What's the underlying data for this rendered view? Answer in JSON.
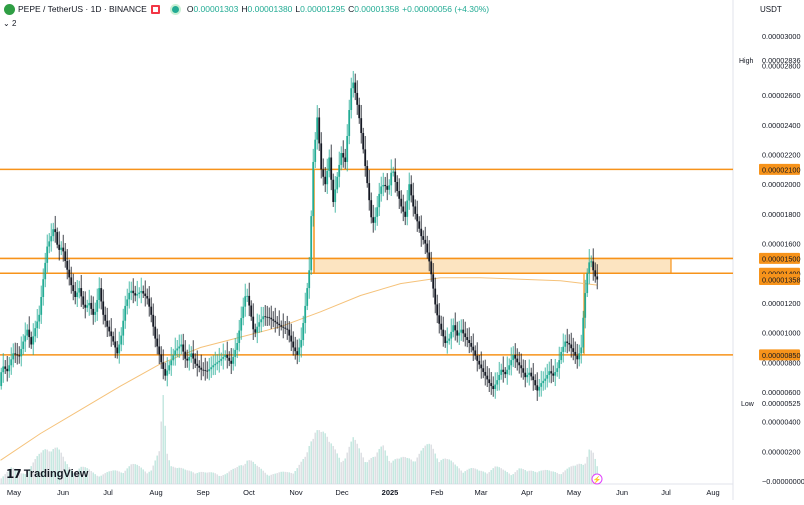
{
  "header": {
    "symbol": "PEPE / TetherUS · 1D · BINANCE",
    "open_label": "O",
    "open": "0.00001303",
    "high_label": "H",
    "high": "0.00001380",
    "low_label": "L",
    "low": "0.00001295",
    "close_label": "C",
    "close": "0.00001358",
    "change": "+0.00000056 (+4.30%)"
  },
  "indicator_count": "2",
  "currency": "USDT",
  "logo_text": "TradingView",
  "colors": {
    "up": "#22ab94",
    "down": "#131722",
    "level": "#f7931a",
    "zone_fill": "#fbd9a6",
    "ma": "#f5c27a"
  },
  "chart_data": {
    "type": "candlestick",
    "x_labels": [
      "May",
      "Jun",
      "Jul",
      "Aug",
      "Sep",
      "Oct",
      "Nov",
      "Dec",
      "2025",
      "Feb",
      "Mar",
      "Apr",
      "May",
      "Jun",
      "Jul",
      "Aug"
    ],
    "y_ticks": [
      "0.00003000",
      "0.00002800",
      "0.00002600",
      "0.00002400",
      "0.00002200",
      "0.00002000",
      "0.00001800",
      "0.00001600",
      "0.00001200",
      "0.00001000",
      "0.00000800",
      "0.00000600",
      "0.00000400",
      "0.00000200",
      "−0.00000000"
    ],
    "ylim": [
      -2e-07,
      3.12e-05
    ],
    "high_label": "High",
    "high_value": "0.00002836",
    "low_label": "Low",
    "low_value": "0.00000525",
    "levels": [
      {
        "value": 2.1e-05,
        "label": "0.00002100"
      },
      {
        "value": 1.5e-05,
        "label": "0.00001500"
      },
      {
        "value": 1.4e-05,
        "label": "0.00001400"
      },
      {
        "value": 8.5e-06,
        "label": "0.00000850"
      }
    ],
    "current_price": {
      "value": 1.358e-05,
      "label": "0.00001358"
    },
    "zone": {
      "from": 1.4e-05,
      "to": 1.5e-05
    },
    "price_path": [
      [
        0,
        6.4e-06
      ],
      [
        3,
        7.8e-06
      ],
      [
        8,
        7.4e-06
      ],
      [
        14,
        8.6e-06
      ],
      [
        20,
        8.4e-06
      ],
      [
        24,
        9.4e-06
      ],
      [
        28,
        1.02e-05
      ],
      [
        32,
        9.2e-06
      ],
      [
        36,
        1.03e-05
      ],
      [
        40,
        1.12e-05
      ],
      [
        44,
        1.36e-05
      ],
      [
        48,
        1.58e-05
      ],
      [
        52,
        1.65e-05
      ],
      [
        55,
        1.72e-05
      ],
      [
        59,
        1.55e-05
      ],
      [
        63,
        1.58e-05
      ],
      [
        67,
        1.45e-05
      ],
      [
        72,
        1.32e-05
      ],
      [
        76,
        1.24e-05
      ],
      [
        80,
        1.3e-05
      ],
      [
        85,
        1.16e-05
      ],
      [
        90,
        1.2e-05
      ],
      [
        95,
        1.1e-05
      ],
      [
        100,
        1.3e-05
      ],
      [
        104,
        1.12e-05
      ],
      [
        108,
        1.04e-05
      ],
      [
        113,
        9.6e-06
      ],
      [
        118,
        8.6e-06
      ],
      [
        122,
        9.8e-06
      ],
      [
        126,
        1.18e-05
      ],
      [
        131,
        1.29e-05
      ],
      [
        136,
        1.25e-05
      ],
      [
        142,
        1.28e-05
      ],
      [
        148,
        1.23e-05
      ],
      [
        152,
        1.12e-05
      ],
      [
        156,
        9.6e-06
      ],
      [
        162,
        8e-06
      ],
      [
        166,
        7.1e-06
      ],
      [
        170,
        7.8e-06
      ],
      [
        176,
        8.8e-06
      ],
      [
        182,
        9.2e-06
      ],
      [
        187,
        8e-06
      ],
      [
        192,
        8.6e-06
      ],
      [
        196,
        7.9e-06
      ],
      [
        202,
        7.5e-06
      ],
      [
        208,
        7.4e-06
      ],
      [
        214,
        7.8e-06
      ],
      [
        220,
        8.1e-06
      ],
      [
        226,
        8.5e-06
      ],
      [
        232,
        7.9e-06
      ],
      [
        238,
        9.3e-06
      ],
      [
        243,
        1.14e-05
      ],
      [
        247,
        1.28e-05
      ],
      [
        251,
        1.15e-05
      ],
      [
        255,
        9.8e-06
      ],
      [
        259,
        1.06e-05
      ],
      [
        264,
        1.11e-05
      ],
      [
        270,
        1.1e-05
      ],
      [
        276,
        1.07e-05
      ],
      [
        282,
        1.04e-05
      ],
      [
        288,
        1.02e-05
      ],
      [
        294,
        9e-06
      ],
      [
        298,
        8.5e-06
      ],
      [
        302,
        9.5e-06
      ],
      [
        306,
        1.18e-05
      ],
      [
        310,
        1.42e-05
      ],
      [
        314,
        2.15e-05
      ],
      [
        318,
        2.45e-05
      ],
      [
        322,
        2.1e-05
      ],
      [
        326,
        2e-05
      ],
      [
        330,
        2.18e-05
      ],
      [
        334,
        1.88e-05
      ],
      [
        338,
        2.05e-05
      ],
      [
        342,
        2.21e-05
      ],
      [
        346,
        2.15e-05
      ],
      [
        350,
        2.5e-05
      ],
      [
        353,
        2.72e-05
      ],
      [
        357,
        2.58e-05
      ],
      [
        361,
        2.4e-05
      ],
      [
        365,
        2.18e-05
      ],
      [
        369,
        1.95e-05
      ],
      [
        373,
        1.72e-05
      ],
      [
        377,
        1.8e-05
      ],
      [
        381,
        1.98e-05
      ],
      [
        385,
        2e-05
      ],
      [
        389,
        1.95e-05
      ],
      [
        393,
        2.12e-05
      ],
      [
        397,
        1.98e-05
      ],
      [
        402,
        1.85e-05
      ],
      [
        406,
        1.78e-05
      ],
      [
        410,
        2e-05
      ],
      [
        414,
        1.85e-05
      ],
      [
        418,
        1.75e-05
      ],
      [
        422,
        1.65e-05
      ],
      [
        426,
        1.6e-05
      ],
      [
        430,
        1.48e-05
      ],
      [
        433,
        1.35e-05
      ],
      [
        436,
        1.19e-05
      ],
      [
        439,
        1.08e-05
      ],
      [
        442,
        1.02e-05
      ],
      [
        446,
        9.3e-06
      ],
      [
        450,
        9.6e-06
      ],
      [
        454,
        1.05e-05
      ],
      [
        458,
        9.8e-06
      ],
      [
        462,
        1.02e-05
      ],
      [
        466,
        9.7e-06
      ],
      [
        470,
        9.3e-06
      ],
      [
        474,
        8.8e-06
      ],
      [
        478,
        8.1e-06
      ],
      [
        482,
        7.6e-06
      ],
      [
        486,
        7.1e-06
      ],
      [
        490,
        6.6e-06
      ],
      [
        494,
        6.2e-06
      ],
      [
        498,
        6.8e-06
      ],
      [
        502,
        7.5e-06
      ],
      [
        506,
        7.2e-06
      ],
      [
        510,
        7.8e-06
      ],
      [
        514,
        8.5e-06
      ],
      [
        518,
        8e-06
      ],
      [
        522,
        7.6e-06
      ],
      [
        526,
        7e-06
      ],
      [
        530,
        7.3e-06
      ],
      [
        534,
        6.8e-06
      ],
      [
        538,
        6.1e-06
      ],
      [
        542,
        6.6e-06
      ],
      [
        546,
        6.9e-06
      ],
      [
        550,
        7.4e-06
      ],
      [
        554,
        7.1e-06
      ],
      [
        558,
        7.6e-06
      ],
      [
        562,
        8.7e-06
      ],
      [
        566,
        9.4e-06
      ],
      [
        570,
        9.2e-06
      ],
      [
        574,
        8.7e-06
      ],
      [
        578,
        8.2e-06
      ],
      [
        582,
        9e-06
      ],
      [
        585,
        1.2e-05
      ],
      [
        588,
        1.4e-05
      ],
      [
        591,
        1.51e-05
      ],
      [
        594,
        1.42e-05
      ],
      [
        597,
        1.358e-05
      ]
    ],
    "ma_path": [
      [
        0,
        1.4e-06
      ],
      [
        40,
        3.2e-06
      ],
      [
        80,
        4.8e-06
      ],
      [
        120,
        6.4e-06
      ],
      [
        160,
        7.9e-06
      ],
      [
        200,
        9e-06
      ],
      [
        240,
        9.7e-06
      ],
      [
        280,
        1.04e-05
      ],
      [
        320,
        1.14e-05
      ],
      [
        360,
        1.25e-05
      ],
      [
        400,
        1.33e-05
      ],
      [
        440,
        1.37e-05
      ],
      [
        480,
        1.37e-05
      ],
      [
        520,
        1.36e-05
      ],
      [
        560,
        1.35e-05
      ],
      [
        597,
        1.32e-05
      ]
    ],
    "volume_path": [
      [
        0,
        0.1
      ],
      [
        10,
        0.18
      ],
      [
        20,
        0.14
      ],
      [
        30,
        0.22
      ],
      [
        40,
        0.35
      ],
      [
        48,
        0.55
      ],
      [
        56,
        0.42
      ],
      [
        64,
        0.25
      ],
      [
        72,
        0.18
      ],
      [
        80,
        0.2
      ],
      [
        90,
        0.15
      ],
      [
        100,
        0.12
      ],
      [
        110,
        0.14
      ],
      [
        120,
        0.18
      ],
      [
        130,
        0.22
      ],
      [
        140,
        0.2
      ],
      [
        150,
        0.18
      ],
      [
        158,
        0.35
      ],
      [
        162,
        1.0
      ],
      [
        166,
        0.4
      ],
      [
        175,
        0.2
      ],
      [
        185,
        0.15
      ],
      [
        195,
        0.18
      ],
      [
        205,
        0.12
      ],
      [
        215,
        0.14
      ],
      [
        225,
        0.12
      ],
      [
        235,
        0.18
      ],
      [
        245,
        0.35
      ],
      [
        255,
        0.2
      ],
      [
        265,
        0.15
      ],
      [
        275,
        0.12
      ],
      [
        285,
        0.14
      ],
      [
        295,
        0.2
      ],
      [
        305,
        0.3
      ],
      [
        312,
        0.6
      ],
      [
        316,
        0.95
      ],
      [
        320,
        0.7
      ],
      [
        328,
        0.45
      ],
      [
        336,
        0.4
      ],
      [
        344,
        0.35
      ],
      [
        352,
        0.5
      ],
      [
        358,
        0.42
      ],
      [
        366,
        0.35
      ],
      [
        374,
        0.3
      ],
      [
        382,
        0.45
      ],
      [
        390,
        0.35
      ],
      [
        398,
        0.28
      ],
      [
        406,
        0.3
      ],
      [
        414,
        0.38
      ],
      [
        422,
        0.4
      ],
      [
        430,
        0.45
      ],
      [
        438,
        0.38
      ],
      [
        446,
        0.28
      ],
      [
        454,
        0.22
      ],
      [
        462,
        0.2
      ],
      [
        470,
        0.18
      ],
      [
        478,
        0.15
      ],
      [
        486,
        0.18
      ],
      [
        494,
        0.2
      ],
      [
        502,
        0.16
      ],
      [
        510,
        0.15
      ],
      [
        518,
        0.18
      ],
      [
        526,
        0.14
      ],
      [
        534,
        0.2
      ],
      [
        542,
        0.16
      ],
      [
        550,
        0.14
      ],
      [
        558,
        0.16
      ],
      [
        566,
        0.18
      ],
      [
        574,
        0.2
      ],
      [
        582,
        0.3
      ],
      [
        588,
        0.45
      ],
      [
        592,
        0.35
      ],
      [
        597,
        0.15
      ]
    ]
  }
}
